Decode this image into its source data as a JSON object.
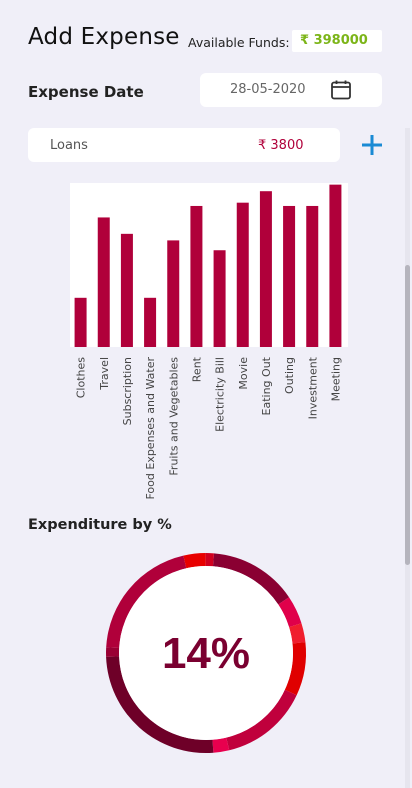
{
  "header": {
    "title": "Add Expense",
    "funds_label": "Available Funds:",
    "funds_value": "₹ 398000"
  },
  "date": {
    "label": "Expense Date",
    "value": "28-05-2020"
  },
  "category_row": {
    "name": "Loans",
    "amount": "₹ 3800"
  },
  "chart_data": [
    {
      "type": "bar",
      "categories": [
        "Clothes",
        "Travel",
        "Subscription",
        "Food Expenses and Water",
        "Fruits and Vegetables",
        "Rent",
        "Electricity Bill",
        "Movie",
        "Eating Out",
        "Outing",
        "Investment",
        "Meeting"
      ],
      "values": [
        30,
        79,
        69,
        30,
        65,
        86,
        59,
        88,
        95,
        86,
        86,
        99
      ],
      "ylim": [
        0,
        100
      ],
      "color": "#b0003a"
    },
    {
      "type": "pie",
      "title": "Expenditure by %",
      "center_label": "14%",
      "slices": [
        {
          "value": 14,
          "color": "#8a0032"
        },
        {
          "value": 4.5,
          "color": "#e0004a"
        },
        {
          "value": 3,
          "color": "#f01e2e"
        },
        {
          "value": 8.5,
          "color": "#e00000"
        },
        {
          "value": 14,
          "color": "#c0003c"
        },
        {
          "value": 2.5,
          "color": "#e8004e"
        },
        {
          "value": 25,
          "color": "#6e0028"
        },
        {
          "value": 1.5,
          "color": "#9a0034"
        },
        {
          "value": 20,
          "color": "#b0003a"
        },
        {
          "value": 3.5,
          "color": "#e80000"
        },
        {
          "value": 1.3,
          "color": "#d00020"
        }
      ]
    }
  ],
  "icons": {
    "calendar": "calendar-icon",
    "add": "plus-icon"
  }
}
